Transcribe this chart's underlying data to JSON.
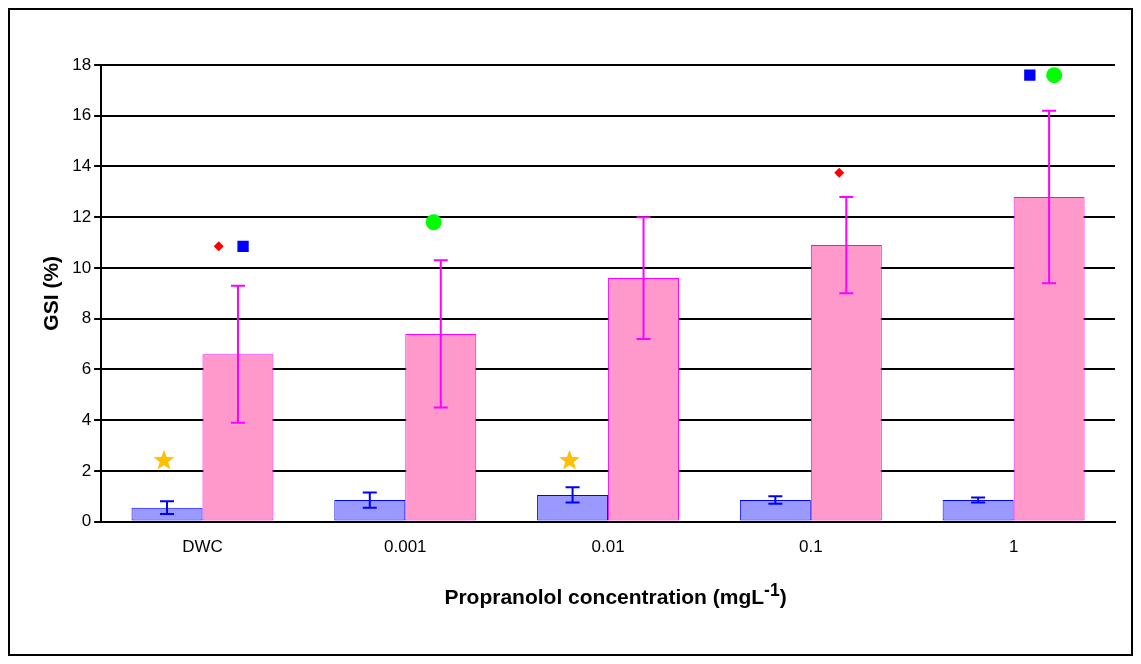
{
  "chart_data": {
    "type": "bar",
    "xlabel": "Propranolol concentration (mgL$^{-1}$)",
    "ylabel": "GSI (%)",
    "categories": [
      "DWC",
      "0.001",
      "0.01",
      "0.1",
      "1"
    ],
    "series": [
      {
        "color": "#9999ff",
        "values": [
          0.55,
          0.85,
          1.05,
          0.85,
          0.85
        ],
        "errors": [
          0.25,
          0.3,
          0.3,
          0.15,
          0.1
        ]
      },
      {
        "color": "#ff99cc",
        "values": [
          6.6,
          7.4,
          9.6,
          10.9,
          12.8
        ],
        "errors": [
          2.7,
          2.9,
          2.4,
          1.9,
          3.4
        ]
      },
      {
        "type": "scatter",
        "marker": "star",
        "color": "#ffc000",
        "x": [
          "DWC",
          "0.01"
        ],
        "values": [
          2.4,
          2.4
        ]
      },
      {
        "type": "scatter",
        "marker": "diamond",
        "color": "#ff0000",
        "x": [
          "DWC",
          "0.1"
        ],
        "values": [
          10.85,
          13.75
        ]
      },
      {
        "type": "scatter",
        "marker": "square",
        "color": "#0000ff",
        "x": [
          "DWC",
          "1"
        ],
        "values": [
          10.85,
          17.6
        ]
      },
      {
        "type": "scatter",
        "marker": "circle",
        "color": "#00ff00",
        "x": [
          "0.001",
          "1"
        ],
        "values": [
          11.8,
          17.6
        ]
      }
    ],
    "ylim": [
      0,
      18
    ],
    "yticks": [
      0,
      2,
      4,
      6,
      8,
      10,
      12,
      14,
      16,
      18
    ],
    "grid": "y",
    "legend": false
  }
}
